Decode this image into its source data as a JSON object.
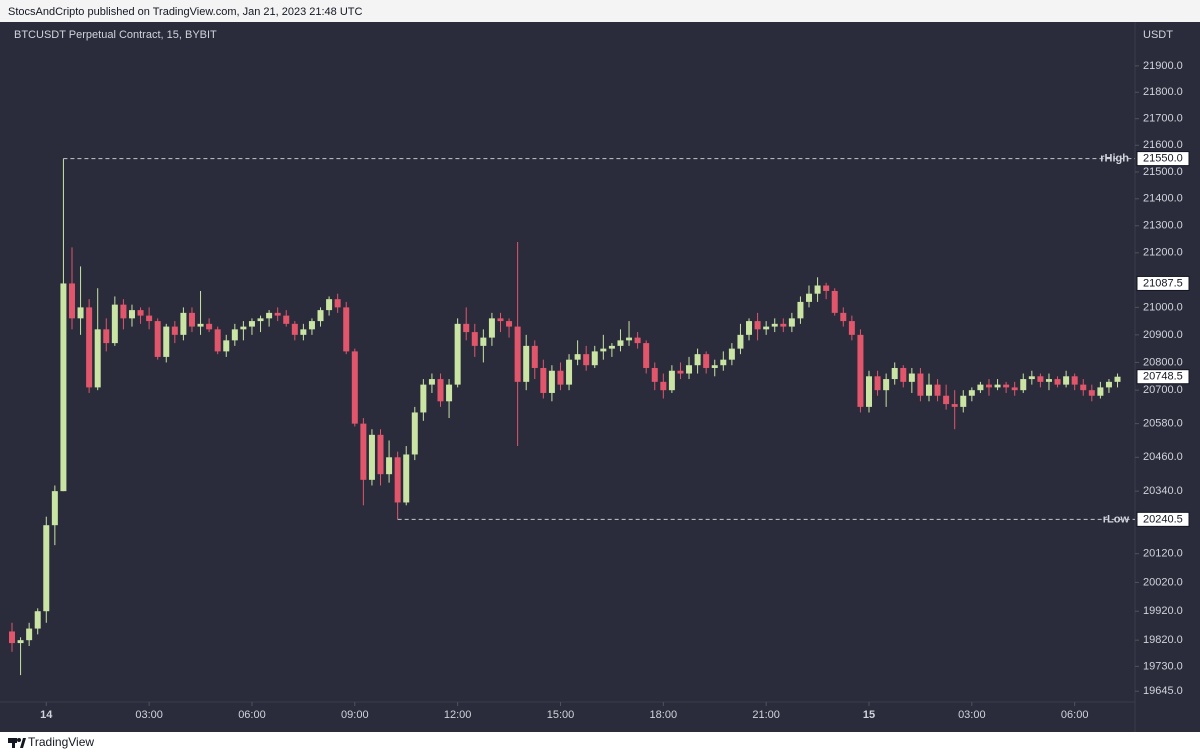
{
  "header": {
    "publisher": "StocsAndCripto published on TradingView.com, Jan 21, 2023 21:48 UTC"
  },
  "footer": {
    "brand": "TradingView"
  },
  "chart_data": {
    "type": "candlestick",
    "title": "BTCUSDT Perpetual Contract, 15, BYBIT",
    "y_axis_label": "USDT",
    "log_scale": true,
    "up_color": "#c9e4a3",
    "down_color": "#e2566c",
    "ylim": [
      19615,
      22060
    ],
    "yticks": [
      {
        "value": 21900,
        "label": "21900.0"
      },
      {
        "value": 21800,
        "label": "21800.0"
      },
      {
        "value": 21700,
        "label": "21700.0"
      },
      {
        "value": 21600,
        "label": "21600.0"
      },
      {
        "value": 21500,
        "label": "21500.0"
      },
      {
        "value": 21400,
        "label": "21400.0"
      },
      {
        "value": 21300,
        "label": "21300.0"
      },
      {
        "value": 21200,
        "label": "21200.0"
      },
      {
        "value": 21000,
        "label": "21000.0"
      },
      {
        "value": 20900,
        "label": "20900.0"
      },
      {
        "value": 20800,
        "label": "20800.0"
      },
      {
        "value": 20700,
        "label": "20700.0"
      },
      {
        "value": 20580,
        "label": "20580.0"
      },
      {
        "value": 20460,
        "label": "20460.0"
      },
      {
        "value": 20340,
        "label": "20340.0"
      },
      {
        "value": 20120,
        "label": "20120.0"
      },
      {
        "value": 20020,
        "label": "20020.0"
      },
      {
        "value": 19920,
        "label": "19920.0"
      },
      {
        "value": 19820,
        "label": "19820.0"
      },
      {
        "value": 19730,
        "label": "19730.0"
      },
      {
        "value": 19645,
        "label": "19645.0"
      }
    ],
    "xticks": [
      {
        "value": 4,
        "label": "14"
      },
      {
        "value": 16,
        "label": "03:00"
      },
      {
        "value": 28,
        "label": "06:00"
      },
      {
        "value": 40,
        "label": "09:00"
      },
      {
        "value": 52,
        "label": "12:00"
      },
      {
        "value": 64,
        "label": "15:00"
      },
      {
        "value": 76,
        "label": "18:00"
      },
      {
        "value": 88,
        "label": "21:00"
      },
      {
        "value": 100,
        "label": "15"
      },
      {
        "value": 112,
        "label": "03:00"
      },
      {
        "value": 124,
        "label": "06:00"
      }
    ],
    "levels": [
      {
        "name": "rHigh",
        "value": 21550,
        "label": "21550.0"
      },
      {
        "name": "rLow",
        "value": 20240.5,
        "label": "20240.5"
      }
    ],
    "price_labels": [
      {
        "value": 21087.5,
        "label": "21087.5"
      },
      {
        "value": 20748.5,
        "label": "20748.5"
      }
    ],
    "ohlc": [
      [
        19850,
        19880,
        19780,
        19810
      ],
      [
        19810,
        19830,
        19700,
        19820
      ],
      [
        19820,
        19880,
        19800,
        19860
      ],
      [
        19860,
        19930,
        19840,
        19920
      ],
      [
        19920,
        20250,
        19880,
        20220
      ],
      [
        20220,
        20360,
        20150,
        20340
      ],
      [
        20340,
        21550,
        20340,
        21087.5
      ],
      [
        21087.5,
        21220,
        20920,
        20960
      ],
      [
        20960,
        21150,
        20900,
        21000
      ],
      [
        21000,
        21030,
        20690,
        20710
      ],
      [
        20710,
        21070,
        20700,
        20920
      ],
      [
        20920,
        20960,
        20840,
        20870
      ],
      [
        20870,
        21040,
        20860,
        21010
      ],
      [
        21010,
        21030,
        20920,
        20960
      ],
      [
        20960,
        21010,
        20930,
        20990
      ],
      [
        20990,
        21000,
        20940,
        20970
      ],
      [
        20970,
        21000,
        20920,
        20950
      ],
      [
        20950,
        20960,
        20810,
        20820
      ],
      [
        20820,
        20940,
        20800,
        20930
      ],
      [
        20930,
        20950,
        20870,
        20900
      ],
      [
        20900,
        21000,
        20880,
        20980
      ],
      [
        20980,
        21000,
        20910,
        20930
      ],
      [
        20930,
        21060,
        20900,
        20940
      ],
      [
        20940,
        20960,
        20910,
        20920
      ],
      [
        20920,
        20930,
        20830,
        20840
      ],
      [
        20840,
        20900,
        20820,
        20880
      ],
      [
        20880,
        20940,
        20860,
        20920
      ],
      [
        20920,
        20950,
        20880,
        20930
      ],
      [
        20930,
        20960,
        20900,
        20950
      ],
      [
        20950,
        20970,
        20910,
        20960
      ],
      [
        20960,
        20990,
        20930,
        20980
      ],
      [
        20980,
        21000,
        20950,
        20970
      ],
      [
        20970,
        20990,
        20930,
        20940
      ],
      [
        20940,
        20950,
        20880,
        20900
      ],
      [
        20900,
        20940,
        20880,
        20920
      ],
      [
        20920,
        20960,
        20900,
        20950
      ],
      [
        20950,
        21000,
        20930,
        20990
      ],
      [
        20990,
        21040,
        20970,
        21030
      ],
      [
        21030,
        21050,
        20980,
        21000
      ],
      [
        21000,
        21020,
        20830,
        20840
      ],
      [
        20840,
        20850,
        20570,
        20580
      ],
      [
        20580,
        20600,
        20290,
        20380
      ],
      [
        20380,
        20560,
        20360,
        20540
      ],
      [
        20540,
        20560,
        20360,
        20400
      ],
      [
        20400,
        20520,
        20370,
        20460
      ],
      [
        20460,
        20480,
        20240.5,
        20300
      ],
      [
        20300,
        20500,
        20290,
        20470
      ],
      [
        20470,
        20640,
        20450,
        20620
      ],
      [
        20620,
        20740,
        20590,
        20720
      ],
      [
        20720,
        20760,
        20690,
        20740
      ],
      [
        20740,
        20760,
        20640,
        20660
      ],
      [
        20660,
        20740,
        20600,
        20720
      ],
      [
        20720,
        20960,
        20710,
        20940
      ],
      [
        20940,
        21000,
        20880,
        20910
      ],
      [
        20910,
        20940,
        20820,
        20860
      ],
      [
        20860,
        20920,
        20800,
        20890
      ],
      [
        20890,
        20980,
        20860,
        20960
      ],
      [
        20960,
        20980,
        20910,
        20950
      ],
      [
        20950,
        20960,
        20890,
        20930
      ],
      [
        20930,
        21240,
        20500,
        20730
      ],
      [
        20730,
        20900,
        20700,
        20860
      ],
      [
        20860,
        20880,
        20740,
        20780
      ],
      [
        20780,
        20810,
        20670,
        20690
      ],
      [
        20690,
        20790,
        20660,
        20770
      ],
      [
        20770,
        20800,
        20700,
        20720
      ],
      [
        20720,
        20830,
        20700,
        20810
      ],
      [
        20810,
        20880,
        20790,
        20830
      ],
      [
        20830,
        20860,
        20770,
        20790
      ],
      [
        20790,
        20860,
        20780,
        20840
      ],
      [
        20840,
        20900,
        20810,
        20850
      ],
      [
        20850,
        20870,
        20820,
        20860
      ],
      [
        20860,
        20920,
        20840,
        20880
      ],
      [
        20880,
        20950,
        20860,
        20890
      ],
      [
        20890,
        20910,
        20850,
        20870
      ],
      [
        20870,
        20880,
        20760,
        20780
      ],
      [
        20780,
        20800,
        20700,
        20730
      ],
      [
        20730,
        20760,
        20670,
        20700
      ],
      [
        20700,
        20790,
        20690,
        20770
      ],
      [
        20770,
        20800,
        20740,
        20760
      ],
      [
        20760,
        20820,
        20740,
        20790
      ],
      [
        20790,
        20850,
        20760,
        20830
      ],
      [
        20830,
        20840,
        20760,
        20780
      ],
      [
        20780,
        20810,
        20750,
        20790
      ],
      [
        20790,
        20840,
        20770,
        20810
      ],
      [
        20810,
        20870,
        20790,
        20850
      ],
      [
        20850,
        20940,
        20830,
        20900
      ],
      [
        20900,
        20960,
        20880,
        20950
      ],
      [
        20950,
        20980,
        20880,
        20920
      ],
      [
        20920,
        20950,
        20900,
        20930
      ],
      [
        20930,
        20960,
        20910,
        20940
      ],
      [
        20940,
        20960,
        20910,
        20930
      ],
      [
        20930,
        20980,
        20910,
        20960
      ],
      [
        20960,
        21040,
        20940,
        21020
      ],
      [
        21020,
        21080,
        21000,
        21050
      ],
      [
        21050,
        21110,
        21020,
        21080
      ],
      [
        21080,
        21090,
        21030,
        21060
      ],
      [
        21060,
        21070,
        20970,
        20980
      ],
      [
        20980,
        21000,
        20930,
        20950
      ],
      [
        20950,
        20970,
        20880,
        20900
      ],
      [
        20900,
        20920,
        20620,
        20640
      ],
      [
        20640,
        20770,
        20620,
        20750
      ],
      [
        20750,
        20770,
        20680,
        20700
      ],
      [
        20700,
        20760,
        20640,
        20740
      ],
      [
        20740,
        20800,
        20720,
        20780
      ],
      [
        20780,
        20790,
        20710,
        20730
      ],
      [
        20730,
        20780,
        20690,
        20760
      ],
      [
        20760,
        20780,
        20660,
        20680
      ],
      [
        20680,
        20760,
        20660,
        20720
      ],
      [
        20720,
        20740,
        20660,
        20680
      ],
      [
        20680,
        20720,
        20630,
        20650
      ],
      [
        20650,
        20700,
        20560,
        20640
      ],
      [
        20640,
        20700,
        20620,
        20680
      ],
      [
        20680,
        20710,
        20660,
        20700
      ],
      [
        20700,
        20730,
        20690,
        20720
      ],
      [
        20720,
        20740,
        20680,
        20710
      ],
      [
        20710,
        20740,
        20700,
        20720
      ],
      [
        20720,
        20730,
        20690,
        20710
      ],
      [
        20710,
        20730,
        20680,
        20700
      ],
      [
        20700,
        20760,
        20690,
        20740
      ],
      [
        20740,
        20770,
        20720,
        20750
      ],
      [
        20750,
        20760,
        20710,
        20730
      ],
      [
        20730,
        20760,
        20700,
        20740
      ],
      [
        20740,
        20750,
        20710,
        20720
      ],
      [
        20720,
        20770,
        20710,
        20750
      ],
      [
        20750,
        20760,
        20700,
        20720
      ],
      [
        20720,
        20740,
        20680,
        20700
      ],
      [
        20700,
        20720,
        20660,
        20680
      ],
      [
        20680,
        20730,
        20670,
        20710
      ],
      [
        20710,
        20740,
        20690,
        20730
      ],
      [
        20730,
        20760,
        20710,
        20748.5
      ]
    ]
  }
}
